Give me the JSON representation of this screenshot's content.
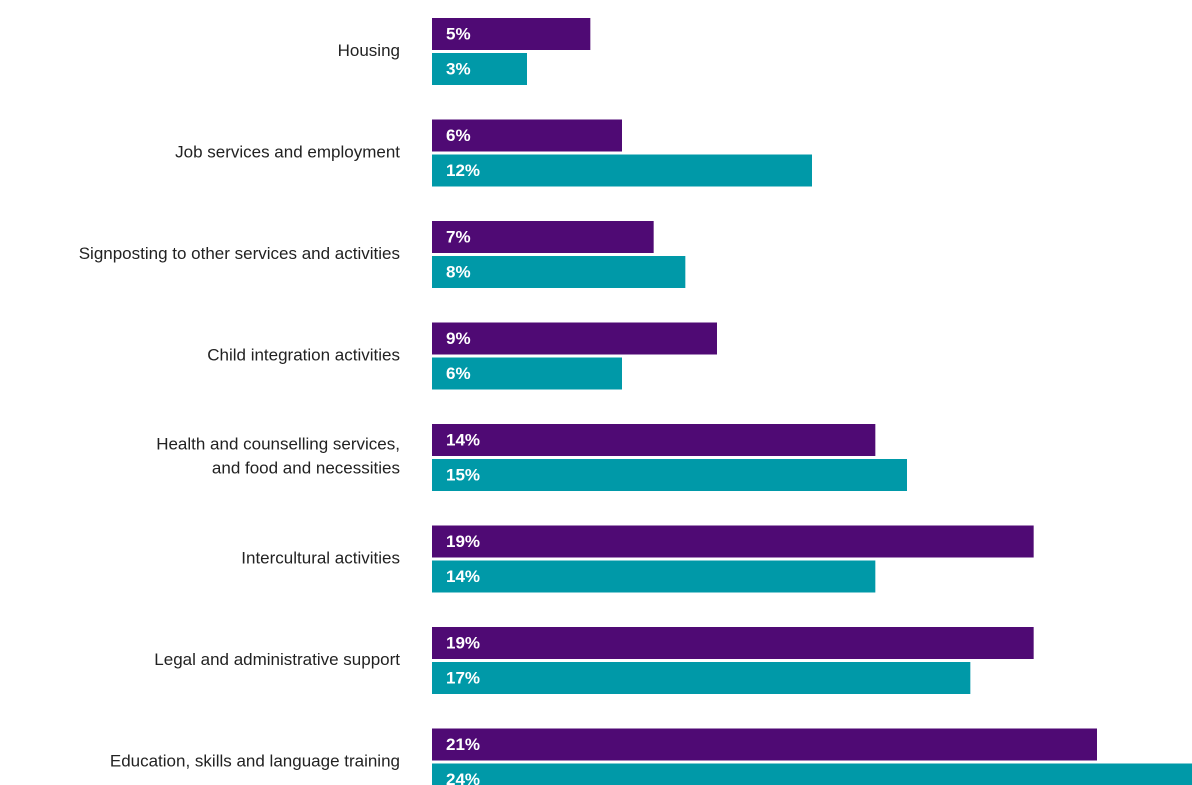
{
  "chart_data": {
    "type": "bar",
    "orientation": "horizontal",
    "categories": [
      "Housing",
      "Job services and employment",
      "Signposting to other services and activities",
      "Child integration activities",
      "Health and counselling services,\nand food and necessities",
      "Intercultural activities",
      "Legal and administrative support",
      "Education, skills and language training"
    ],
    "series": [
      {
        "color": "#4f0a74",
        "values": [
          5,
          6,
          7,
          9,
          14,
          19,
          19,
          21
        ],
        "value_labels": [
          "5%",
          "6%",
          "7%",
          "9%",
          "14%",
          "19%",
          "19%",
          "21%"
        ]
      },
      {
        "color": "#0099a8",
        "values": [
          3,
          12,
          8,
          6,
          15,
          14,
          17,
          24
        ],
        "value_labels": [
          "3%",
          "12%",
          "8%",
          "6%",
          "15%",
          "14%",
          "17%",
          "24%"
        ]
      }
    ],
    "xlim": [
      0,
      24
    ]
  }
}
